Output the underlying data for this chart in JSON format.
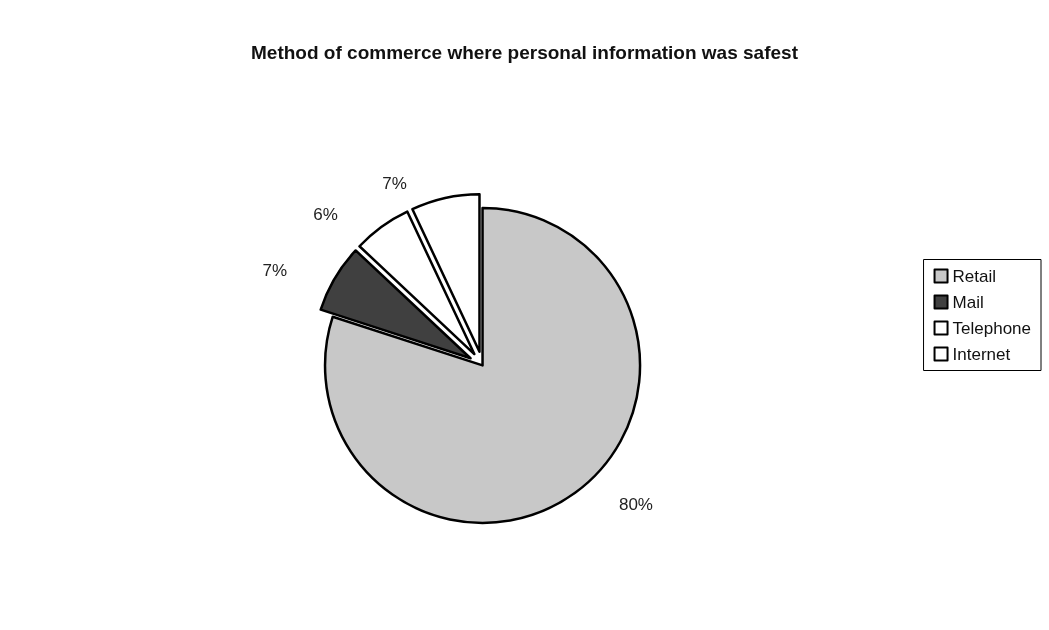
{
  "chart_data": {
    "type": "pie",
    "title": "Method of commerce where personal information was safest",
    "categories": [
      "Retail",
      "Mail",
      "Telephone",
      "Internet"
    ],
    "values": [
      80,
      7,
      6,
      7
    ],
    "colors": [
      "#c8c8c8",
      "#404040",
      "#ffffff",
      "#ffffff"
    ],
    "value_labels": [
      "80%",
      "7%",
      "6%",
      "7%"
    ],
    "legend": "right"
  }
}
